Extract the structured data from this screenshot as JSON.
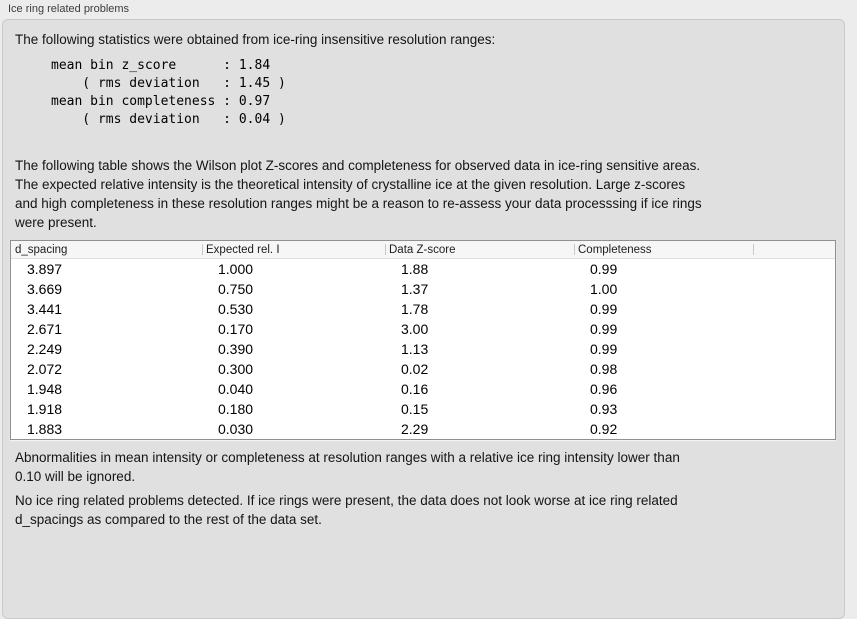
{
  "panel": {
    "title": "Ice ring related problems"
  },
  "stats": {
    "intro": "The following statistics were obtained from ice-ring insensitive resolution ranges:",
    "block": "mean bin z_score      : 1.84\n    ( rms deviation   : 1.45 )\nmean bin completeness : 0.97\n    ( rms deviation   : 0.04 )",
    "mean_bin_z_score": "1.84",
    "z_score_rms_deviation": "1.45",
    "mean_bin_completeness": "0.97",
    "completeness_rms_deviation": "0.04"
  },
  "table_intro": "The following table shows the Wilson plot Z-scores and completeness for observed data in ice-ring sensitive areas.\nThe expected relative intensity is the theoretical intensity of crystalline ice at the given resolution. Large z-scores\nand high completeness in these resolution ranges might be a reason to re-assess your data processsing if ice rings\nwere present.",
  "table": {
    "headers": [
      "d_spacing",
      "Expected rel. I",
      "Data Z-score",
      "Completeness"
    ],
    "rows": [
      [
        "3.897",
        "1.000",
        "1.88",
        "0.99"
      ],
      [
        "3.669",
        "0.750",
        "1.37",
        "1.00"
      ],
      [
        "3.441",
        "0.530",
        "1.78",
        "0.99"
      ],
      [
        "2.671",
        "0.170",
        "3.00",
        "0.99"
      ],
      [
        "2.249",
        "0.390",
        "1.13",
        "0.99"
      ],
      [
        "2.072",
        "0.300",
        "0.02",
        "0.98"
      ],
      [
        "1.948",
        "0.040",
        "0.16",
        "0.96"
      ],
      [
        "1.918",
        "0.180",
        "0.15",
        "0.93"
      ],
      [
        "1.883",
        "0.030",
        "2.29",
        "0.92"
      ]
    ]
  },
  "notes": {
    "ignore": "Abnormalities in mean intensity or completeness at resolution ranges with a relative ice ring intensity lower than\n0.10 will be ignored.",
    "result": "No ice ring related problems detected. If ice rings were present, the data does not look worse at ice ring related\nd_spacings as compared to the rest of the data set."
  },
  "colors": {
    "page_bg": "#ececec",
    "panel_bg": "#e0e0e0",
    "table_bg": "#ffffff",
    "table_border": "#909090"
  }
}
